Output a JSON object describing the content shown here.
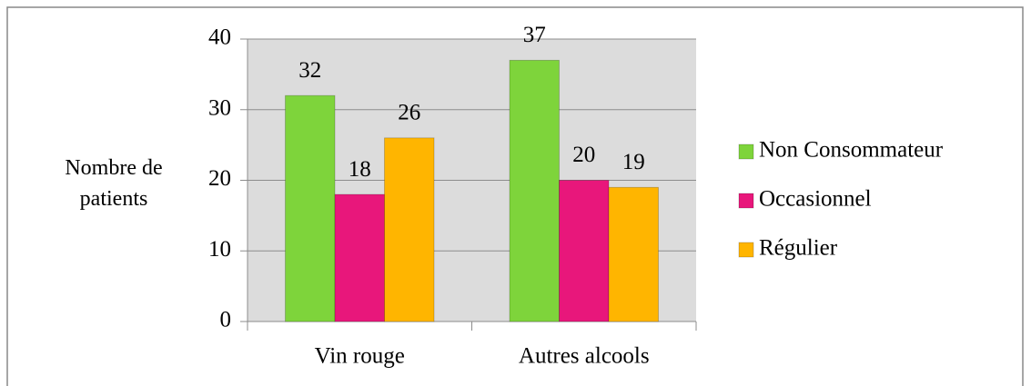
{
  "chart_data": {
    "type": "bar",
    "y_label": "Nombre de patients",
    "categories": [
      "Vin rouge",
      "Autres alcools"
    ],
    "series": [
      {
        "name": "Non Consommateur",
        "color": "#7ed43b",
        "values": [
          32,
          37
        ]
      },
      {
        "name": "Occasionnel",
        "color": "#e8177b",
        "values": [
          18,
          20
        ]
      },
      {
        "name": "Régulier",
        "color": "#ffb500",
        "values": [
          26,
          19
        ]
      }
    ],
    "ylim": [
      0,
      40
    ],
    "yticks": [
      0,
      10,
      20,
      30,
      40
    ],
    "grid": true,
    "legend": "right"
  }
}
